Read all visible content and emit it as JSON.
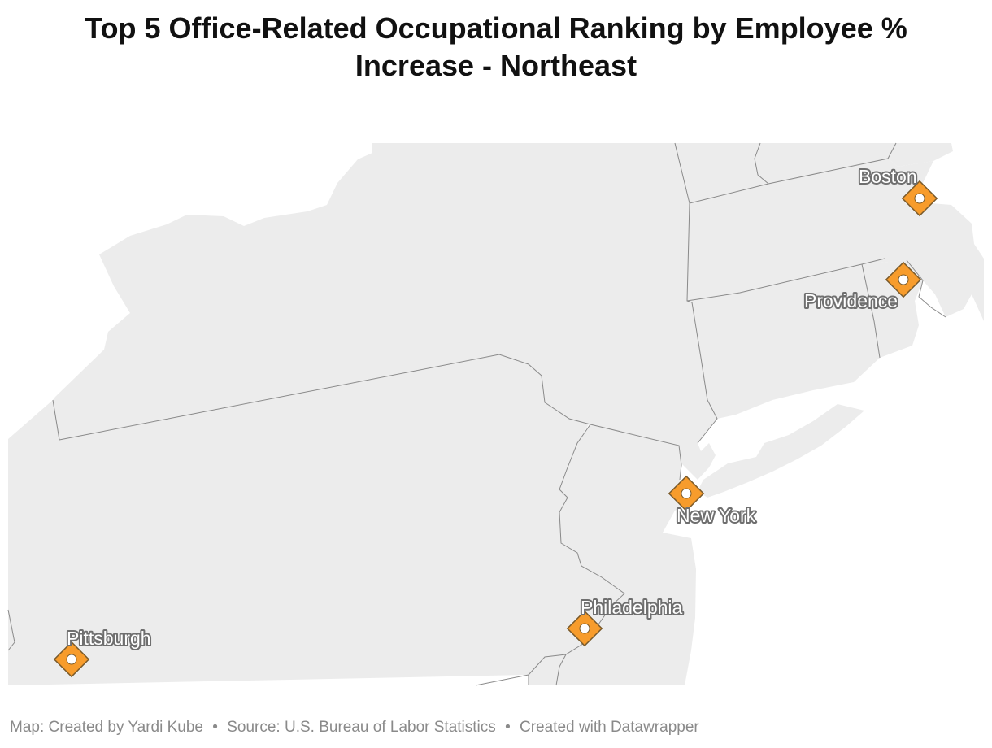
{
  "title": "Top 5 Office-Related Occupational Ranking by Employee % Increase - Northeast",
  "colors": {
    "land": "#ececec",
    "border": "#8a8a8a",
    "marker_fill": "#f79c2c",
    "marker_stroke": "#7a5a2a",
    "footer_text": "#8a8a8a"
  },
  "marker_icon": "diamond-pin-icon",
  "cities": [
    {
      "name": "Boston"
    },
    {
      "name": "Providence"
    },
    {
      "name": "New York"
    },
    {
      "name": "Philadelphia"
    },
    {
      "name": "Pittsburgh"
    }
  ],
  "footer": {
    "map_credit": "Map: Created by Yardi Kube",
    "source": "Source: U.S. Bureau of Labor Statistics",
    "tool": "Created with Datawrapper",
    "separator": "•"
  }
}
